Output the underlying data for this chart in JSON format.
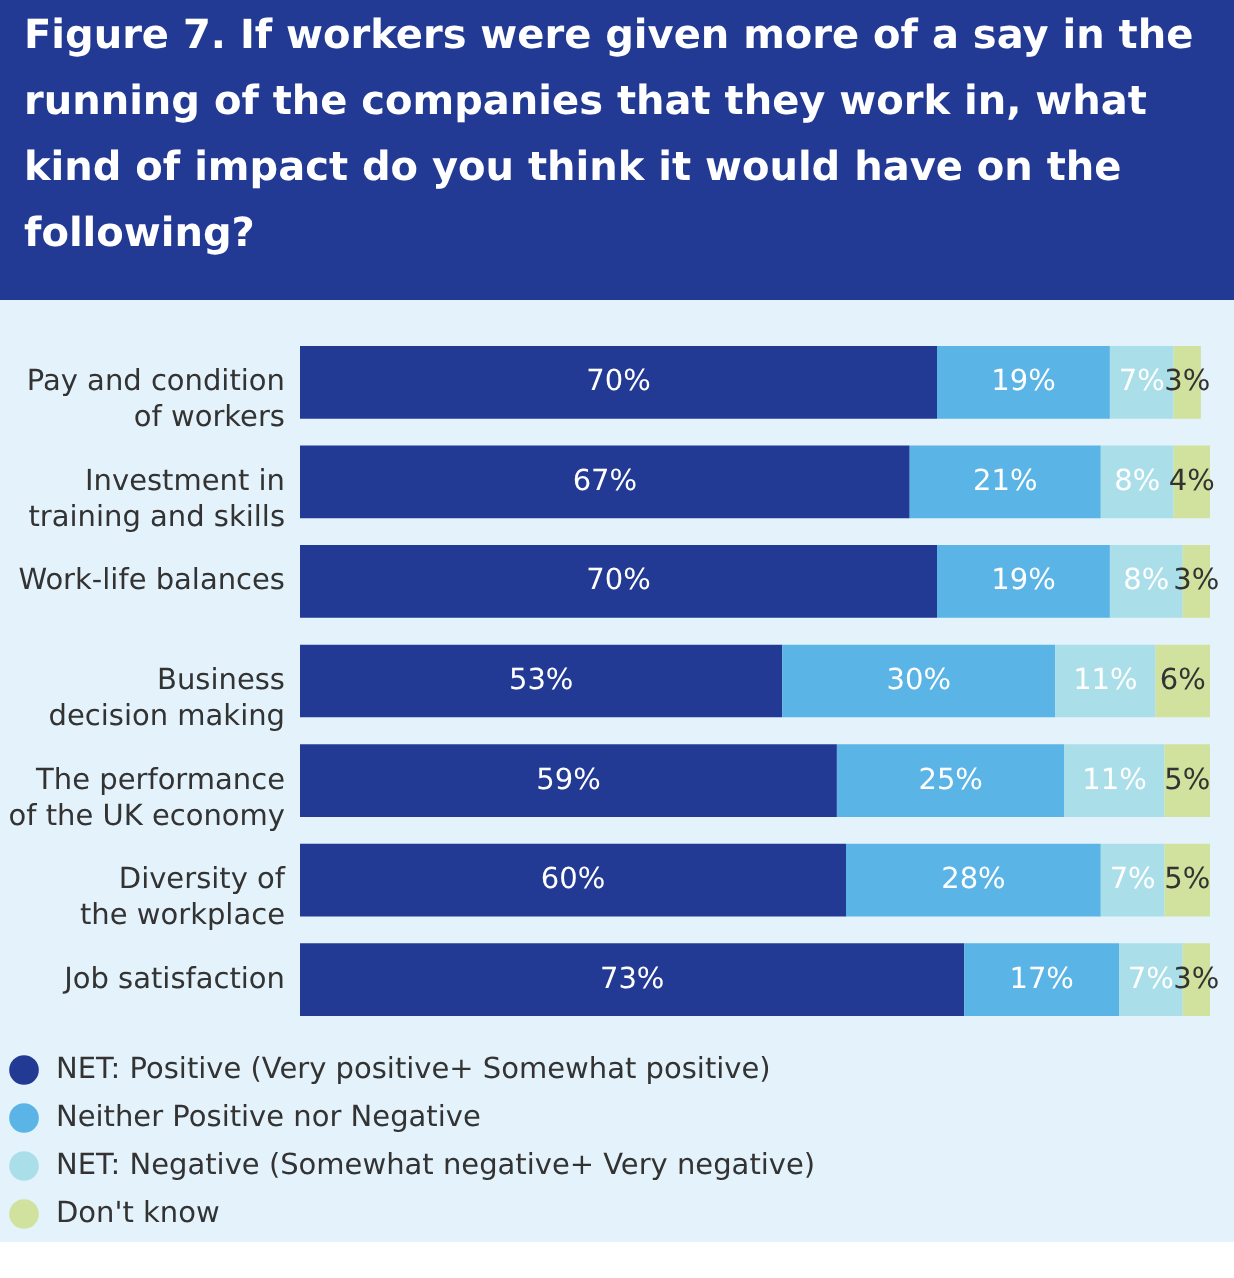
{
  "chart_data": {
    "type": "bar",
    "orientation": "horizontal",
    "stacked": true,
    "legend": "bottom",
    "title": "Figure 7. If workers were given more of a say in the running of the companies that they work in, what kind of impact do you think it would have on the following?",
    "categories": [
      "Pay and condition of workers",
      "Investment in training and skills",
      "Work-life balances",
      "Business decision making",
      "The performance of the UK economy",
      "Diversity of the workplace",
      "Job satisfaction"
    ],
    "series": [
      {
        "name": "NET: Positive (Very positive+ Somewhat positive)",
        "color": "#233a94",
        "values": [
          70,
          67,
          70,
          53,
          59,
          60,
          73
        ],
        "value_labels": [
          "70%",
          "67%",
          "70%",
          "53%",
          "59%",
          "60%",
          "73%"
        ]
      },
      {
        "name": "Neither Positive nor Negative",
        "color": "#5ab4e6",
        "values": [
          19,
          21,
          19,
          30,
          25,
          28,
          17
        ],
        "value_labels": [
          "19%",
          "21%",
          "19%",
          "30%",
          "25%",
          "28%",
          "17%"
        ]
      },
      {
        "name": "NET: Negative (Somewhat negative+ Very negative)",
        "color": "#aadfea",
        "values": [
          7,
          8,
          8,
          11,
          11,
          7,
          7
        ],
        "value_labels": [
          "7%",
          "8%",
          "8%",
          "11%",
          "11%",
          "7%",
          "7%"
        ]
      },
      {
        "name": "Don't know",
        "color": "#d0e29d",
        "values": [
          3,
          4,
          3,
          6,
          5,
          5,
          3
        ],
        "value_labels": [
          "3%",
          "4%",
          "3%",
          "6%",
          "5%",
          "5%",
          "3%"
        ]
      }
    ]
  }
}
